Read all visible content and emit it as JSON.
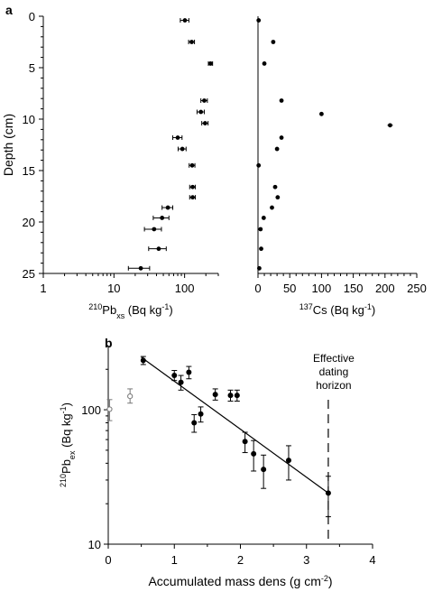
{
  "chart_data": [
    {
      "panel": "a",
      "type": "scatter",
      "ylabel": "Depth (cm)",
      "ylim": [
        0,
        25
      ],
      "yticks": [
        0,
        5,
        10,
        15,
        20,
        25
      ],
      "subplots": [
        {
          "xlabel_sup": "210",
          "xlabel_main": "Pb",
          "xlabel_sub": "xs",
          "xlabel_unit": " (Bq kg",
          "xlabel_unit_sup": "-1",
          "xlabel_close": ")",
          "xscale": "log",
          "xlim": [
            1,
            300
          ],
          "xticks": [
            1,
            10,
            100
          ],
          "points": [
            {
              "y": 0.4,
              "x": 101,
              "err": 14
            },
            {
              "y": 2.5,
              "x": 126,
              "err": 12
            },
            {
              "y": 4.6,
              "x": 233,
              "err": 16
            },
            {
              "y": 8.2,
              "x": 190,
              "err": 20
            },
            {
              "y": 9.3,
              "x": 170,
              "err": 20
            },
            {
              "y": 10.4,
              "x": 195,
              "err": 20
            },
            {
              "y": 11.8,
              "x": 80,
              "err": 12
            },
            {
              "y": 12.9,
              "x": 93,
              "err": 12
            },
            {
              "y": 14.5,
              "x": 128,
              "err": 12
            },
            {
              "y": 16.6,
              "x": 130,
              "err": 12
            },
            {
              "y": 17.6,
              "x": 130,
              "err": 12
            },
            {
              "y": 18.6,
              "x": 58,
              "err": 10
            },
            {
              "y": 19.6,
              "x": 48,
              "err": 12
            },
            {
              "y": 20.7,
              "x": 37,
              "err": 10
            },
            {
              "y": 22.6,
              "x": 43,
              "err": 12
            },
            {
              "y": 24.5,
              "x": 24,
              "err": 8
            }
          ]
        },
        {
          "xlabel_sup": "137",
          "xlabel_main": "Cs (Bq kg",
          "xlabel_unit_sup": "-1",
          "xlabel_close": ")",
          "xscale": "linear",
          "xlim": [
            0,
            250
          ],
          "xticks": [
            0,
            50,
            100,
            150,
            200,
            250
          ],
          "points": [
            {
              "y": 0.4,
              "x": 1,
              "err": 1
            },
            {
              "y": 2.5,
              "x": 24,
              "err": 3
            },
            {
              "y": 4.6,
              "x": 10,
              "err": 2
            },
            {
              "y": 8.2,
              "x": 37,
              "err": 3
            },
            {
              "y": 9.5,
              "x": 100,
              "err": 3
            },
            {
              "y": 10.6,
              "x": 208,
              "err": 5
            },
            {
              "y": 11.8,
              "x": 37,
              "err": 3
            },
            {
              "y": 12.9,
              "x": 30,
              "err": 3
            },
            {
              "y": 14.5,
              "x": 1,
              "err": 1
            },
            {
              "y": 16.6,
              "x": 27,
              "err": 3
            },
            {
              "y": 17.6,
              "x": 31,
              "err": 3
            },
            {
              "y": 18.6,
              "x": 22,
              "err": 3
            },
            {
              "y": 19.6,
              "x": 9,
              "err": 2
            },
            {
              "y": 20.7,
              "x": 4,
              "err": 2
            },
            {
              "y": 22.6,
              "x": 5,
              "err": 2
            },
            {
              "y": 24.5,
              "x": 2,
              "err": 1
            }
          ]
        }
      ]
    },
    {
      "panel": "b",
      "type": "scatter",
      "xlabel": "Accumulated mass dens (g cm",
      "xlabel_sup": "-2",
      "xlabel_close": ")",
      "ylabel_sup": "210",
      "ylabel_main": "Pb",
      "ylabel_sub": "ex",
      "ylabel_unit": " (Bq kg",
      "ylabel_unit_sup": "-1",
      "ylabel_close": ")",
      "xlim": [
        0,
        4
      ],
      "xticks": [
        0,
        1,
        2,
        3,
        4
      ],
      "yscale": "log",
      "ylim": [
        10,
        300
      ],
      "yticks": [
        10,
        100
      ],
      "annotation": [
        "Effective",
        "dating",
        "horizon"
      ],
      "horizon_x": 3.33,
      "fit_line": {
        "x": [
          0.5,
          3.33
        ],
        "y": [
          246,
          24
        ]
      },
      "excluded_points": [
        {
          "x": 0.02,
          "y": 101,
          "lo": 83,
          "hi": 119
        },
        {
          "x": 0.33,
          "y": 126,
          "lo": 112,
          "hi": 143
        }
      ],
      "points": [
        {
          "x": 0.53,
          "y": 233,
          "lo": 217,
          "hi": 249
        },
        {
          "x": 1.0,
          "y": 180,
          "lo": 165,
          "hi": 196
        },
        {
          "x": 1.1,
          "y": 160,
          "lo": 140,
          "hi": 180
        },
        {
          "x": 1.22,
          "y": 190,
          "lo": 170,
          "hi": 210
        },
        {
          "x": 1.3,
          "y": 80,
          "lo": 68,
          "hi": 92
        },
        {
          "x": 1.4,
          "y": 93,
          "lo": 81,
          "hi": 105
        },
        {
          "x": 1.62,
          "y": 130,
          "lo": 118,
          "hi": 143
        },
        {
          "x": 1.85,
          "y": 128,
          "lo": 116,
          "hi": 140
        },
        {
          "x": 1.95,
          "y": 128,
          "lo": 116,
          "hi": 140
        },
        {
          "x": 2.07,
          "y": 58,
          "lo": 48,
          "hi": 68
        },
        {
          "x": 2.2,
          "y": 47,
          "lo": 35,
          "hi": 59
        },
        {
          "x": 2.35,
          "y": 36,
          "lo": 26,
          "hi": 46
        },
        {
          "x": 2.73,
          "y": 42,
          "lo": 30,
          "hi": 54
        },
        {
          "x": 3.33,
          "y": 24,
          "lo": 16,
          "hi": 32
        }
      ]
    }
  ]
}
